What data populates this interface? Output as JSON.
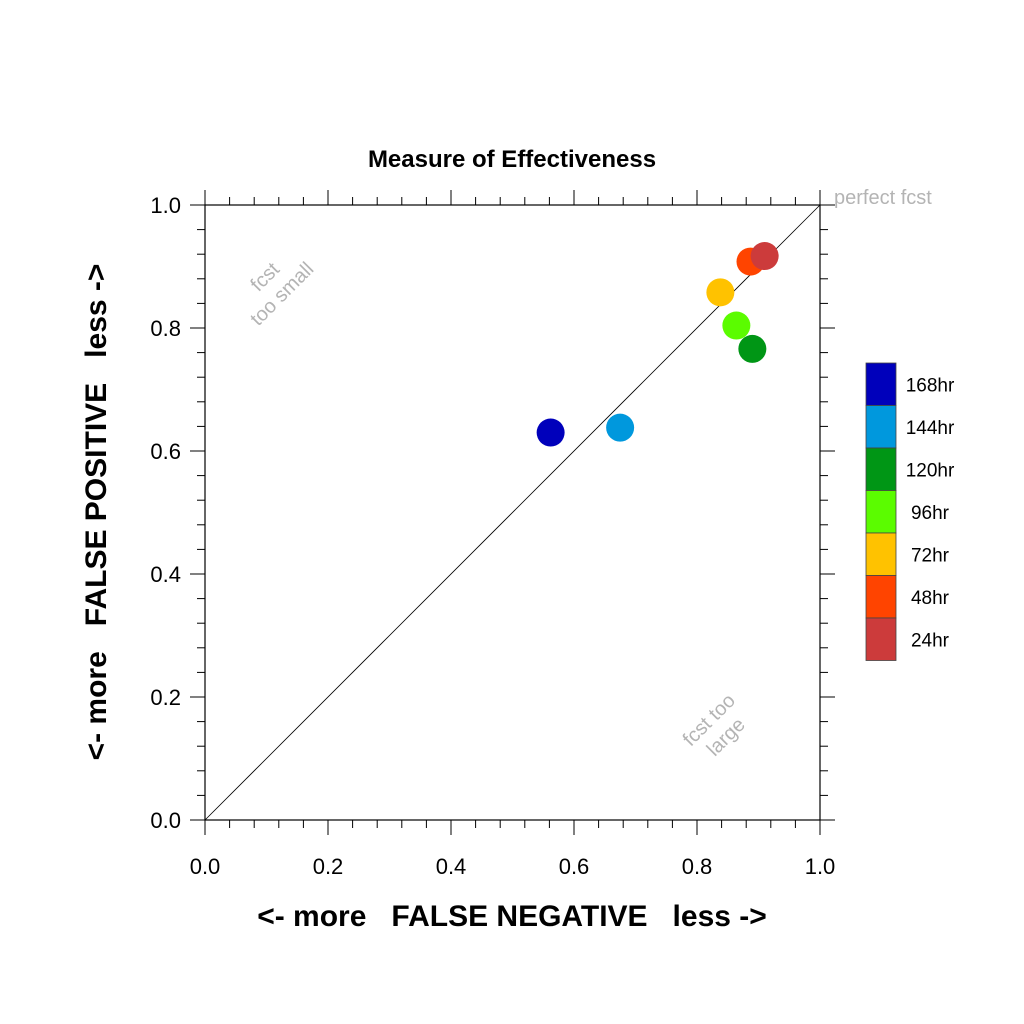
{
  "chart_data": {
    "type": "scatter",
    "title": "Measure of Effectiveness",
    "xlabel": "<- more   FALSE NEGATIVE   less ->",
    "ylabel": "<- more   FALSE POSITIVE   less ->",
    "xlim": [
      0.0,
      1.0
    ],
    "ylim": [
      0.0,
      1.0
    ],
    "x_ticks": [
      "0.0",
      "0.2",
      "0.4",
      "0.6",
      "0.8",
      "1.0"
    ],
    "y_ticks": [
      "0.0",
      "0.2",
      "0.4",
      "0.6",
      "0.8",
      "1.0"
    ],
    "grid": false,
    "reference_line": {
      "from": [
        0,
        0
      ],
      "to": [
        1,
        1
      ]
    },
    "annotations": {
      "perfect": "perfect fcst",
      "too_small_1": "fcst",
      "too_small_2": "too small",
      "too_large_1": "fcst too",
      "too_large_2": "large"
    },
    "legend_position": "right",
    "series": [
      {
        "name": "168hr",
        "color": "#0000bb",
        "x": 0.562,
        "y": 0.63
      },
      {
        "name": "144hr",
        "color": "#0098dd",
        "x": 0.675,
        "y": 0.638
      },
      {
        "name": "120hr",
        "color": "#009615",
        "x": 0.89,
        "y": 0.766
      },
      {
        "name": "96hr",
        "color": "#5bfc00",
        "x": 0.864,
        "y": 0.804
      },
      {
        "name": "72hr",
        "color": "#ffc200",
        "x": 0.838,
        "y": 0.858
      },
      {
        "name": "48hr",
        "color": "#ff4400",
        "x": 0.887,
        "y": 0.908
      },
      {
        "name": "24hr",
        "color": "#cc3b3b",
        "x": 0.91,
        "y": 0.917
      }
    ]
  }
}
